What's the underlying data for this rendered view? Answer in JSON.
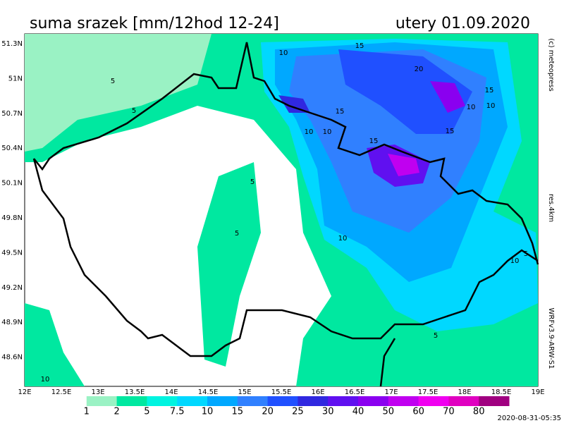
{
  "header": {
    "title": "suma srazek [mm/12hod 12-24]",
    "date": "utery 01.09.2020"
  },
  "side_labels": [
    "(c) meteopress",
    "res.4km",
    "WRFv3.9-ARW-S1"
  ],
  "lat_labels": [
    "51.3N",
    "51N",
    "50.7N",
    "50.4N",
    "50.1N",
    "49.8N",
    "49.5N",
    "49.2N",
    "48.9N",
    "48.6N"
  ],
  "lon_labels": [
    "12E",
    "12.5E",
    "13E",
    "13.5E",
    "14E",
    "14.5E",
    "15E",
    "15.5E",
    "16E",
    "16.5E",
    "17E",
    "17.5E",
    "18E",
    "18.5E",
    "19E"
  ],
  "legend": {
    "labels": [
      "1",
      "2",
      "5",
      "7.5",
      "10",
      "15",
      "20",
      "25",
      "30",
      "40",
      "50",
      "60",
      "70",
      "80"
    ],
    "colors": [
      "#ffffff",
      "#9af2c4",
      "#00e8a0",
      "#00f4e0",
      "#00d8ff",
      "#00a8ff",
      "#3080ff",
      "#2050ff",
      "#3028e0",
      "#6010f0",
      "#8a00f0",
      "#c000f0",
      "#f000f0",
      "#e000c0",
      "#a00080"
    ]
  },
  "contour_labels": [
    "10",
    "15",
    "5",
    "5",
    "20",
    "15",
    "10",
    "15",
    "10",
    "10",
    "15",
    "15",
    "10",
    "5",
    "5",
    "10",
    "10",
    "5",
    "5",
    "10"
  ],
  "timestamp": "2020-08-31-05:35"
}
